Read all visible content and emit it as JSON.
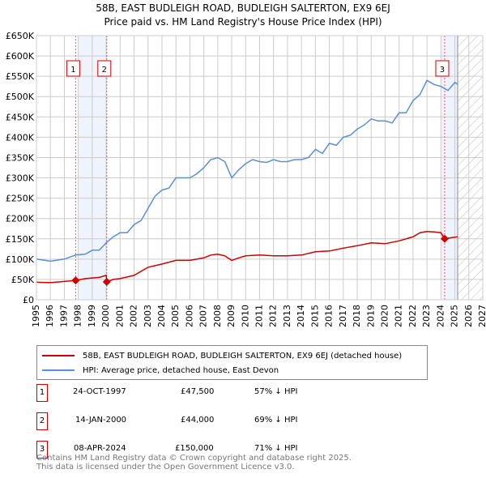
{
  "chart_data": {
    "type": "line",
    "title": "58B, EAST BUDLEIGH ROAD, BUDLEIGH SALTERTON, EX9 6EJ",
    "subtitle": "Price paid vs. HM Land Registry's House Price Index (HPI)",
    "xlim": [
      1995,
      2027
    ],
    "ylim": [
      0,
      650000
    ],
    "x_ticks": [
      "1995",
      "1996",
      "1997",
      "1998",
      "1999",
      "2000",
      "2001",
      "2002",
      "2003",
      "2004",
      "2005",
      "2006",
      "2007",
      "2008",
      "2009",
      "2010",
      "2011",
      "2012",
      "2013",
      "2014",
      "2015",
      "2016",
      "2017",
      "2018",
      "2019",
      "2020",
      "2021",
      "2022",
      "2023",
      "2024",
      "2025",
      "2026",
      "2027"
    ],
    "y_ticks": [
      "£0",
      "£50K",
      "£100K",
      "£150K",
      "£200K",
      "£250K",
      "£300K",
      "£350K",
      "£400K",
      "£450K",
      "£500K",
      "£550K",
      "£600K",
      "£650K"
    ],
    "grid": true,
    "forecast_hatch_from": 2025.2,
    "shaded_ranges": [
      [
        1998.0,
        2000.04
      ],
      [
        2024.0,
        2025.2
      ]
    ],
    "series": [
      {
        "name": "58B, EAST BUDLEIGH ROAD, BUDLEIGH SALTERTON, EX9 6EJ (detached house)",
        "color": "#cc0000",
        "x": [
          1995,
          1996,
          1997,
          1997.8,
          1998.5,
          1999.5,
          2000.0,
          2000.04,
          2000.5,
          2001,
          2002,
          2003,
          2004,
          2005,
          2006,
          2007,
          2007.5,
          2008,
          2008.5,
          2009,
          2009.5,
          2010,
          2011,
          2012,
          2013,
          2014,
          2015,
          2016,
          2017,
          2018,
          2019,
          2020,
          2021,
          2022,
          2022.5,
          2023,
          2023.5,
          2024,
          2024.27,
          2024.6,
          2025.2
        ],
        "y": [
          43000,
          42000,
          45000,
          47500,
          52000,
          55000,
          60000,
          44000,
          50000,
          52000,
          60000,
          80000,
          88000,
          97000,
          97000,
          103000,
          110000,
          112000,
          108000,
          97000,
          103000,
          108000,
          110000,
          108000,
          108000,
          110000,
          118000,
          120000,
          127000,
          133000,
          140000,
          138000,
          145000,
          155000,
          165000,
          168000,
          167000,
          165000,
          150000,
          152000,
          155000
        ]
      },
      {
        "name": "HPI: Average price, detached house, East Devon",
        "color": "#5b8fd6",
        "x": [
          1995,
          1996,
          1997,
          1997.8,
          1998.5,
          1999,
          1999.5,
          2000,
          2000.5,
          2001,
          2001.5,
          2002,
          2002.5,
          2003,
          2003.5,
          2004,
          2004.5,
          2005,
          2005.5,
          2006,
          2006.5,
          2007,
          2007.5,
          2008,
          2008.5,
          2009,
          2009.5,
          2010,
          2010.5,
          2011,
          2011.5,
          2012,
          2012.5,
          2013,
          2013.5,
          2014,
          2014.5,
          2015,
          2015.5,
          2016,
          2016.5,
          2017,
          2017.5,
          2018,
          2018.5,
          2019,
          2019.5,
          2020,
          2020.5,
          2021,
          2021.5,
          2022,
          2022.5,
          2023,
          2023.5,
          2024,
          2024.5,
          2025,
          2025.2
        ],
        "y": [
          100000,
          95000,
          100000,
          110000,
          112000,
          122000,
          122000,
          140000,
          155000,
          165000,
          165000,
          185000,
          195000,
          225000,
          255000,
          270000,
          275000,
          300000,
          300000,
          300000,
          310000,
          325000,
          345000,
          350000,
          340000,
          300000,
          320000,
          335000,
          345000,
          340000,
          338000,
          345000,
          340000,
          340000,
          345000,
          345000,
          350000,
          370000,
          360000,
          385000,
          380000,
          400000,
          405000,
          420000,
          430000,
          445000,
          440000,
          440000,
          435000,
          460000,
          460000,
          490000,
          505000,
          540000,
          530000,
          525000,
          515000,
          535000,
          530000
        ]
      }
    ],
    "sales": [
      {
        "label": "1",
        "date": "24-OCT-1997",
        "price": "£47,500",
        "hpi": "57% ↓ HPI",
        "x": 1997.81,
        "y": 47500
      },
      {
        "label": "2",
        "date": "14-JAN-2000",
        "price": "£44,000",
        "hpi": "69% ↓ HPI",
        "x": 2000.04,
        "y": 44000
      },
      {
        "label": "3",
        "date": "08-APR-2024",
        "price": "£150,000",
        "hpi": "71% ↓ HPI",
        "x": 2024.27,
        "y": 150000
      }
    ]
  },
  "footer": {
    "line1": "Contains HM Land Registry data © Crown copyright and database right 2025.",
    "line2": "This data is licensed under the Open Government Licence v3.0."
  }
}
